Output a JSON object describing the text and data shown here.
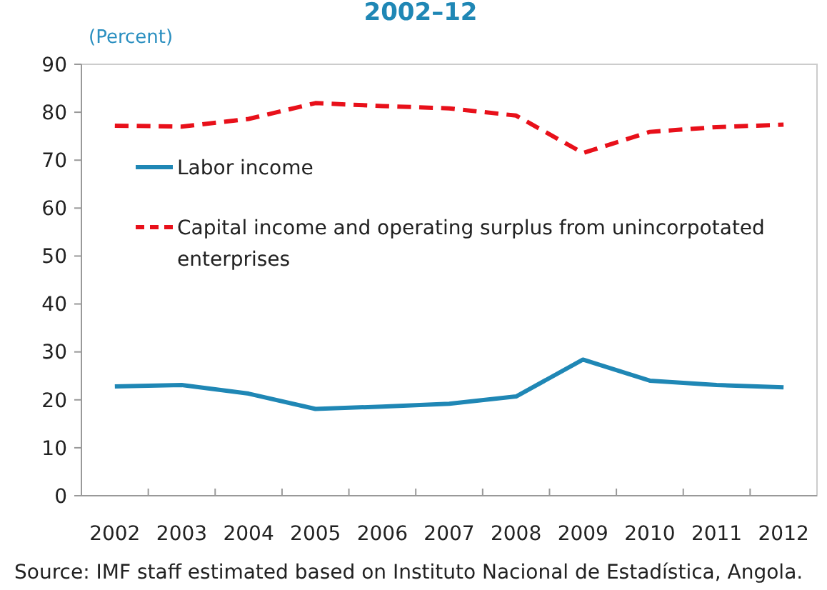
{
  "chart_data": {
    "type": "line",
    "title": "2002–12",
    "ylabel": "(Percent)",
    "categories": [
      "2002",
      "2003",
      "2004",
      "2005",
      "2006",
      "2007",
      "2008",
      "2009",
      "2010",
      "2011",
      "2012"
    ],
    "series": [
      {
        "name": "Labor income",
        "color": "#1f87b5",
        "line_style": "solid",
        "values": [
          22.8,
          23.1,
          21.3,
          18.1,
          18.6,
          19.2,
          20.7,
          28.4,
          24.0,
          23.1,
          22.6
        ]
      },
      {
        "name": "Capital income and operating surplus from unincorpotated enterprises",
        "color": "#e8101a",
        "line_style": "dashed",
        "values": [
          77.2,
          77.0,
          78.6,
          81.9,
          81.3,
          80.8,
          79.3,
          71.5,
          75.9,
          76.9,
          77.4
        ]
      }
    ],
    "ylim": [
      0,
      90
    ],
    "yticks": [
      0,
      10,
      20,
      30,
      40,
      50,
      60,
      70,
      80,
      90
    ],
    "grid": false,
    "legend": "left",
    "marker": "none",
    "annotations": [
      "Source: IMF staff estimated based on Instituto Nacional de Estadística, Angola."
    ]
  }
}
